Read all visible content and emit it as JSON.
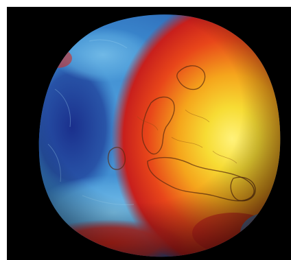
{
  "image": {
    "subject": "geoid-globe",
    "background_color": "#000000",
    "frame_color": "#ffffff",
    "palette": {
      "deep_blue": "#1f3f9a",
      "blue": "#3f8fd0",
      "light_blue": "#6fb9e6",
      "red": "#d8251a",
      "orange": "#f06a12",
      "yellow": "#f6d52a",
      "bright_yellow": "#fff27a"
    }
  }
}
